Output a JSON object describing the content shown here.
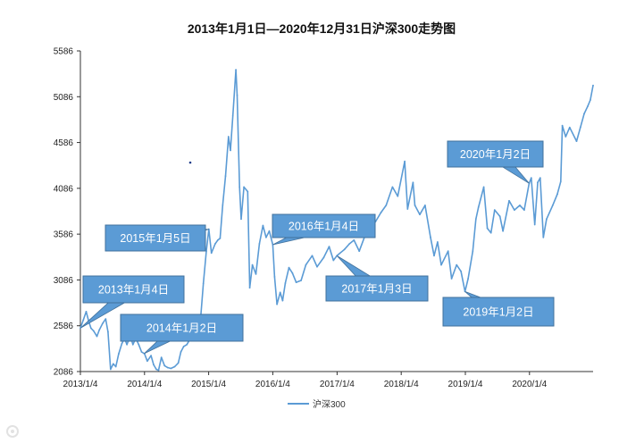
{
  "chart_data": {
    "type": "line",
    "title": "2013年1月1日—2020年12月31日沪深300走势图",
    "xlabel": "",
    "ylabel": "",
    "ylim": [
      2086,
      5586
    ],
    "y_ticks": [
      "2086",
      "2586",
      "3086",
      "3586",
      "4086",
      "4586",
      "5086",
      "5586"
    ],
    "x_ticks": [
      "2013/1/4",
      "2014/1/4",
      "2015/1/4",
      "2016/1/4",
      "2017/1/4",
      "2018/1/4",
      "2019/1/4",
      "2020/1/4"
    ],
    "x_range": [
      "2013/1/4",
      "2020/12/31"
    ],
    "legend": {
      "position": "bottom",
      "entries": [
        "沪深300"
      ]
    },
    "line_color": "#5b9bd5",
    "series": [
      {
        "name": "沪深300",
        "points": [
          [
            "2013/1/4",
            2560
          ],
          [
            "2013/1/21",
            2650
          ],
          [
            "2013/2/6",
            2740
          ],
          [
            "2013/2/20",
            2640
          ],
          [
            "2013/3/5",
            2560
          ],
          [
            "2013/3/20",
            2530
          ],
          [
            "2013/4/8",
            2470
          ],
          [
            "2013/4/22",
            2540
          ],
          [
            "2013/5/10",
            2610
          ],
          [
            "2013/5/28",
            2660
          ],
          [
            "2013/6/10",
            2520
          ],
          [
            "2013/6/25",
            2110
          ],
          [
            "2013/7/10",
            2170
          ],
          [
            "2013/7/25",
            2140
          ],
          [
            "2013/8/10",
            2280
          ],
          [
            "2013/8/28",
            2390
          ],
          [
            "2013/9/12",
            2450
          ],
          [
            "2013/9/26",
            2380
          ],
          [
            "2013/10/15",
            2480
          ],
          [
            "2013/10/30",
            2380
          ],
          [
            "2013/11/15",
            2450
          ],
          [
            "2013/12/2",
            2380
          ],
          [
            "2013/12/18",
            2300
          ],
          [
            "2014/1/4",
            2280
          ],
          [
            "2014/1/20",
            2200
          ],
          [
            "2014/2/10",
            2260
          ],
          [
            "2014/2/25",
            2160
          ],
          [
            "2014/3/12",
            2110
          ],
          [
            "2014/3/25",
            2100
          ],
          [
            "2014/4/10",
            2240
          ],
          [
            "2014/4/28",
            2150
          ],
          [
            "2014/5/15",
            2130
          ],
          [
            "2014/6/3",
            2120
          ],
          [
            "2014/6/25",
            2140
          ],
          [
            "2014/7/15",
            2180
          ],
          [
            "2014/7/30",
            2300
          ],
          [
            "2014/8/15",
            2360
          ],
          [
            "2014/9/2",
            2380
          ],
          [
            "2014/9/20",
            2440
          ],
          [
            "2014/10/10",
            2480
          ],
          [
            "2014/10/30",
            2520
          ],
          [
            "2014/11/20",
            2680
          ],
          [
            "2014/12/5",
            3050
          ],
          [
            "2014/12/22",
            3400
          ],
          [
            "2015/1/5",
            3640
          ],
          [
            "2015/1/20",
            3380
          ],
          [
            "2015/2/10",
            3480
          ],
          [
            "2015/2/25",
            3520
          ],
          [
            "2015/3/10",
            3540
          ],
          [
            "2015/3/25",
            3900
          ],
          [
            "2015/4/10",
            4220
          ],
          [
            "2015/4/27",
            4650
          ],
          [
            "2015/5/8",
            4500
          ],
          [
            "2015/5/22",
            4880
          ],
          [
            "2015/6/8",
            5380
          ],
          [
            "2015/6/15",
            5100
          ],
          [
            "2015/6/29",
            4100
          ],
          [
            "2015/7/8",
            3750
          ],
          [
            "2015/7/24",
            4100
          ],
          [
            "2015/8/14",
            4050
          ],
          [
            "2015/8/26",
            3000
          ],
          [
            "2015/9/10",
            3250
          ],
          [
            "2015/9/30",
            3150
          ],
          [
            "2015/10/20",
            3480
          ],
          [
            "2015/11/9",
            3680
          ],
          [
            "2015/11/27",
            3550
          ],
          [
            "2015/12/15",
            3620
          ],
          [
            "2016/1/4",
            3470
          ],
          [
            "2016/1/14",
            3120
          ],
          [
            "2016/1/28",
            2820
          ],
          [
            "2016/2/15",
            2950
          ],
          [
            "2016/2/29",
            2860
          ],
          [
            "2016/3/15",
            3050
          ],
          [
            "2016/4/5",
            3220
          ],
          [
            "2016/4/25",
            3160
          ],
          [
            "2016/5/16",
            3060
          ],
          [
            "2016/6/13",
            3080
          ],
          [
            "2016/7/10",
            3250
          ],
          [
            "2016/8/15",
            3350
          ],
          [
            "2016/9/12",
            3230
          ],
          [
            "2016/10/20",
            3330
          ],
          [
            "2016/11/20",
            3450
          ],
          [
            "2016/12/14",
            3300
          ],
          [
            "2017/1/3",
            3350
          ],
          [
            "2017/2/15",
            3420
          ],
          [
            "2017/3/15",
            3480
          ],
          [
            "2017/4/10",
            3520
          ],
          [
            "2017/5/10",
            3400
          ],
          [
            "2017/6/10",
            3560
          ],
          [
            "2017/7/10",
            3700
          ],
          [
            "2017/8/10",
            3720
          ],
          [
            "2017/9/10",
            3820
          ],
          [
            "2017/10/10",
            3900
          ],
          [
            "2017/11/15",
            4100
          ],
          [
            "2017/12/15",
            4000
          ],
          [
            "2018/1/24",
            4380
          ],
          [
            "2018/2/9",
            3860
          ],
          [
            "2018/3/12",
            4150
          ],
          [
            "2018/3/23",
            3900
          ],
          [
            "2018/4/20",
            3800
          ],
          [
            "2018/5/20",
            3900
          ],
          [
            "2018/6/20",
            3550
          ],
          [
            "2018/7/10",
            3350
          ],
          [
            "2018/7/30",
            3500
          ],
          [
            "2018/8/20",
            3250
          ],
          [
            "2018/9/28",
            3400
          ],
          [
            "2018/10/18",
            3100
          ],
          [
            "2018/11/15",
            3250
          ],
          [
            "2018/12/10",
            3180
          ],
          [
            "2019/1/2",
            2960
          ],
          [
            "2019/1/20",
            3100
          ],
          [
            "2019/2/15",
            3400
          ],
          [
            "2019/3/5",
            3750
          ],
          [
            "2019/3/20",
            3880
          ],
          [
            "2019/4/19",
            4100
          ],
          [
            "2019/5/9",
            3650
          ],
          [
            "2019/5/30",
            3600
          ],
          [
            "2019/6/20",
            3850
          ],
          [
            "2019/7/20",
            3780
          ],
          [
            "2019/8/6",
            3620
          ],
          [
            "2019/9/10",
            3950
          ],
          [
            "2019/10/10",
            3850
          ],
          [
            "2019/11/10",
            3900
          ],
          [
            "2019/12/5",
            3850
          ],
          [
            "2020/1/2",
            4140
          ],
          [
            "2020/1/14",
            4200
          ],
          [
            "2020/2/3",
            3690
          ],
          [
            "2020/2/20",
            4150
          ],
          [
            "2020/3/5",
            4200
          ],
          [
            "2020/3/23",
            3550
          ],
          [
            "2020/4/10",
            3750
          ],
          [
            "2020/5/15",
            3900
          ],
          [
            "2020/6/10",
            4020
          ],
          [
            "2020/6/30",
            4160
          ],
          [
            "2020/7/9",
            4770
          ],
          [
            "2020/7/28",
            4650
          ],
          [
            "2020/8/20",
            4750
          ],
          [
            "2020/9/28",
            4600
          ],
          [
            "2020/10/20",
            4750
          ],
          [
            "2020/11/10",
            4900
          ],
          [
            "2020/11/30",
            4980
          ],
          [
            "2020/12/15",
            5050
          ],
          [
            "2020/12/31",
            5210
          ]
        ]
      }
    ],
    "annotations": [
      {
        "label": "2013年1月4日",
        "date": "2013/1/4"
      },
      {
        "label": "2014年1月2日",
        "date": "2014/1/2"
      },
      {
        "label": "2015年1月5日",
        "date": "2015/1/5"
      },
      {
        "label": "2016年1月4日",
        "date": "2016/1/4"
      },
      {
        "label": "2017年1月3日",
        "date": "2017/1/3"
      },
      {
        "label": "2019年1月2日",
        "date": "2019/1/2"
      },
      {
        "label": "2020年1月2日",
        "date": "2020/1/2"
      }
    ]
  }
}
